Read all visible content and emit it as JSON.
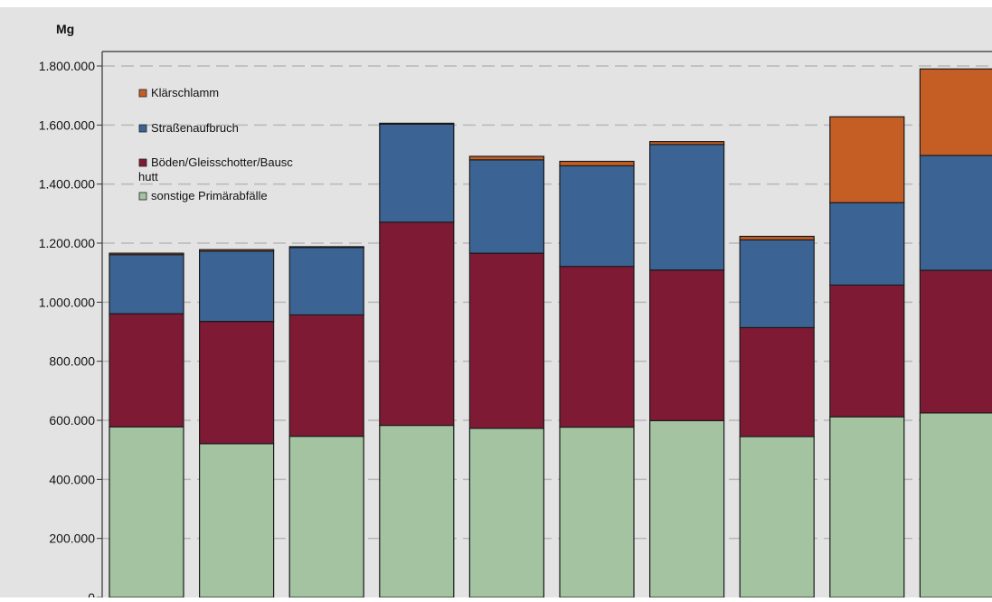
{
  "chart_data": {
    "type": "bar",
    "stacked": true,
    "ylabel": "Mg",
    "ylim": [
      0,
      1900000
    ],
    "yticks": [
      0,
      200000,
      400000,
      600000,
      800000,
      1000000,
      1200000,
      1400000,
      1600000,
      1800000
    ],
    "ytick_labels": [
      "0",
      "200.000",
      "400.000",
      "600.000",
      "800.000",
      "1.000.000",
      "1.200.000",
      "1.400.000",
      "1.600.000",
      "1.800.000"
    ],
    "grid": "horizontal dashed",
    "legend_position": "top-left",
    "bar_count": 10,
    "series": [
      {
        "name": "sonstige Primärabfälle",
        "color": "#a3c3a1",
        "values": [
          578000,
          521000,
          546000,
          583000,
          573000,
          577000,
          599000,
          545000,
          612000,
          625000
        ]
      },
      {
        "name": "Böden/Gleisschotter/Bauschutt",
        "legend_lines": [
          "Böden/Gleisschotter/Bausc",
          "hutt"
        ],
        "color": "#7f1a35",
        "values": [
          383000,
          414000,
          411000,
          688000,
          593000,
          544000,
          510000,
          369000,
          446000,
          483000
        ]
      },
      {
        "name": "Straßenaufbruch",
        "color": "#3b6494",
        "values": [
          200000,
          238000,
          228000,
          332000,
          316000,
          341000,
          425000,
          297000,
          279000,
          389000
        ]
      },
      {
        "name": "Klärschlamm",
        "color": "#c45e24",
        "values": [
          5000,
          5000,
          3000,
          3000,
          12000,
          15000,
          10000,
          12000,
          291000,
          293000
        ]
      }
    ]
  }
}
